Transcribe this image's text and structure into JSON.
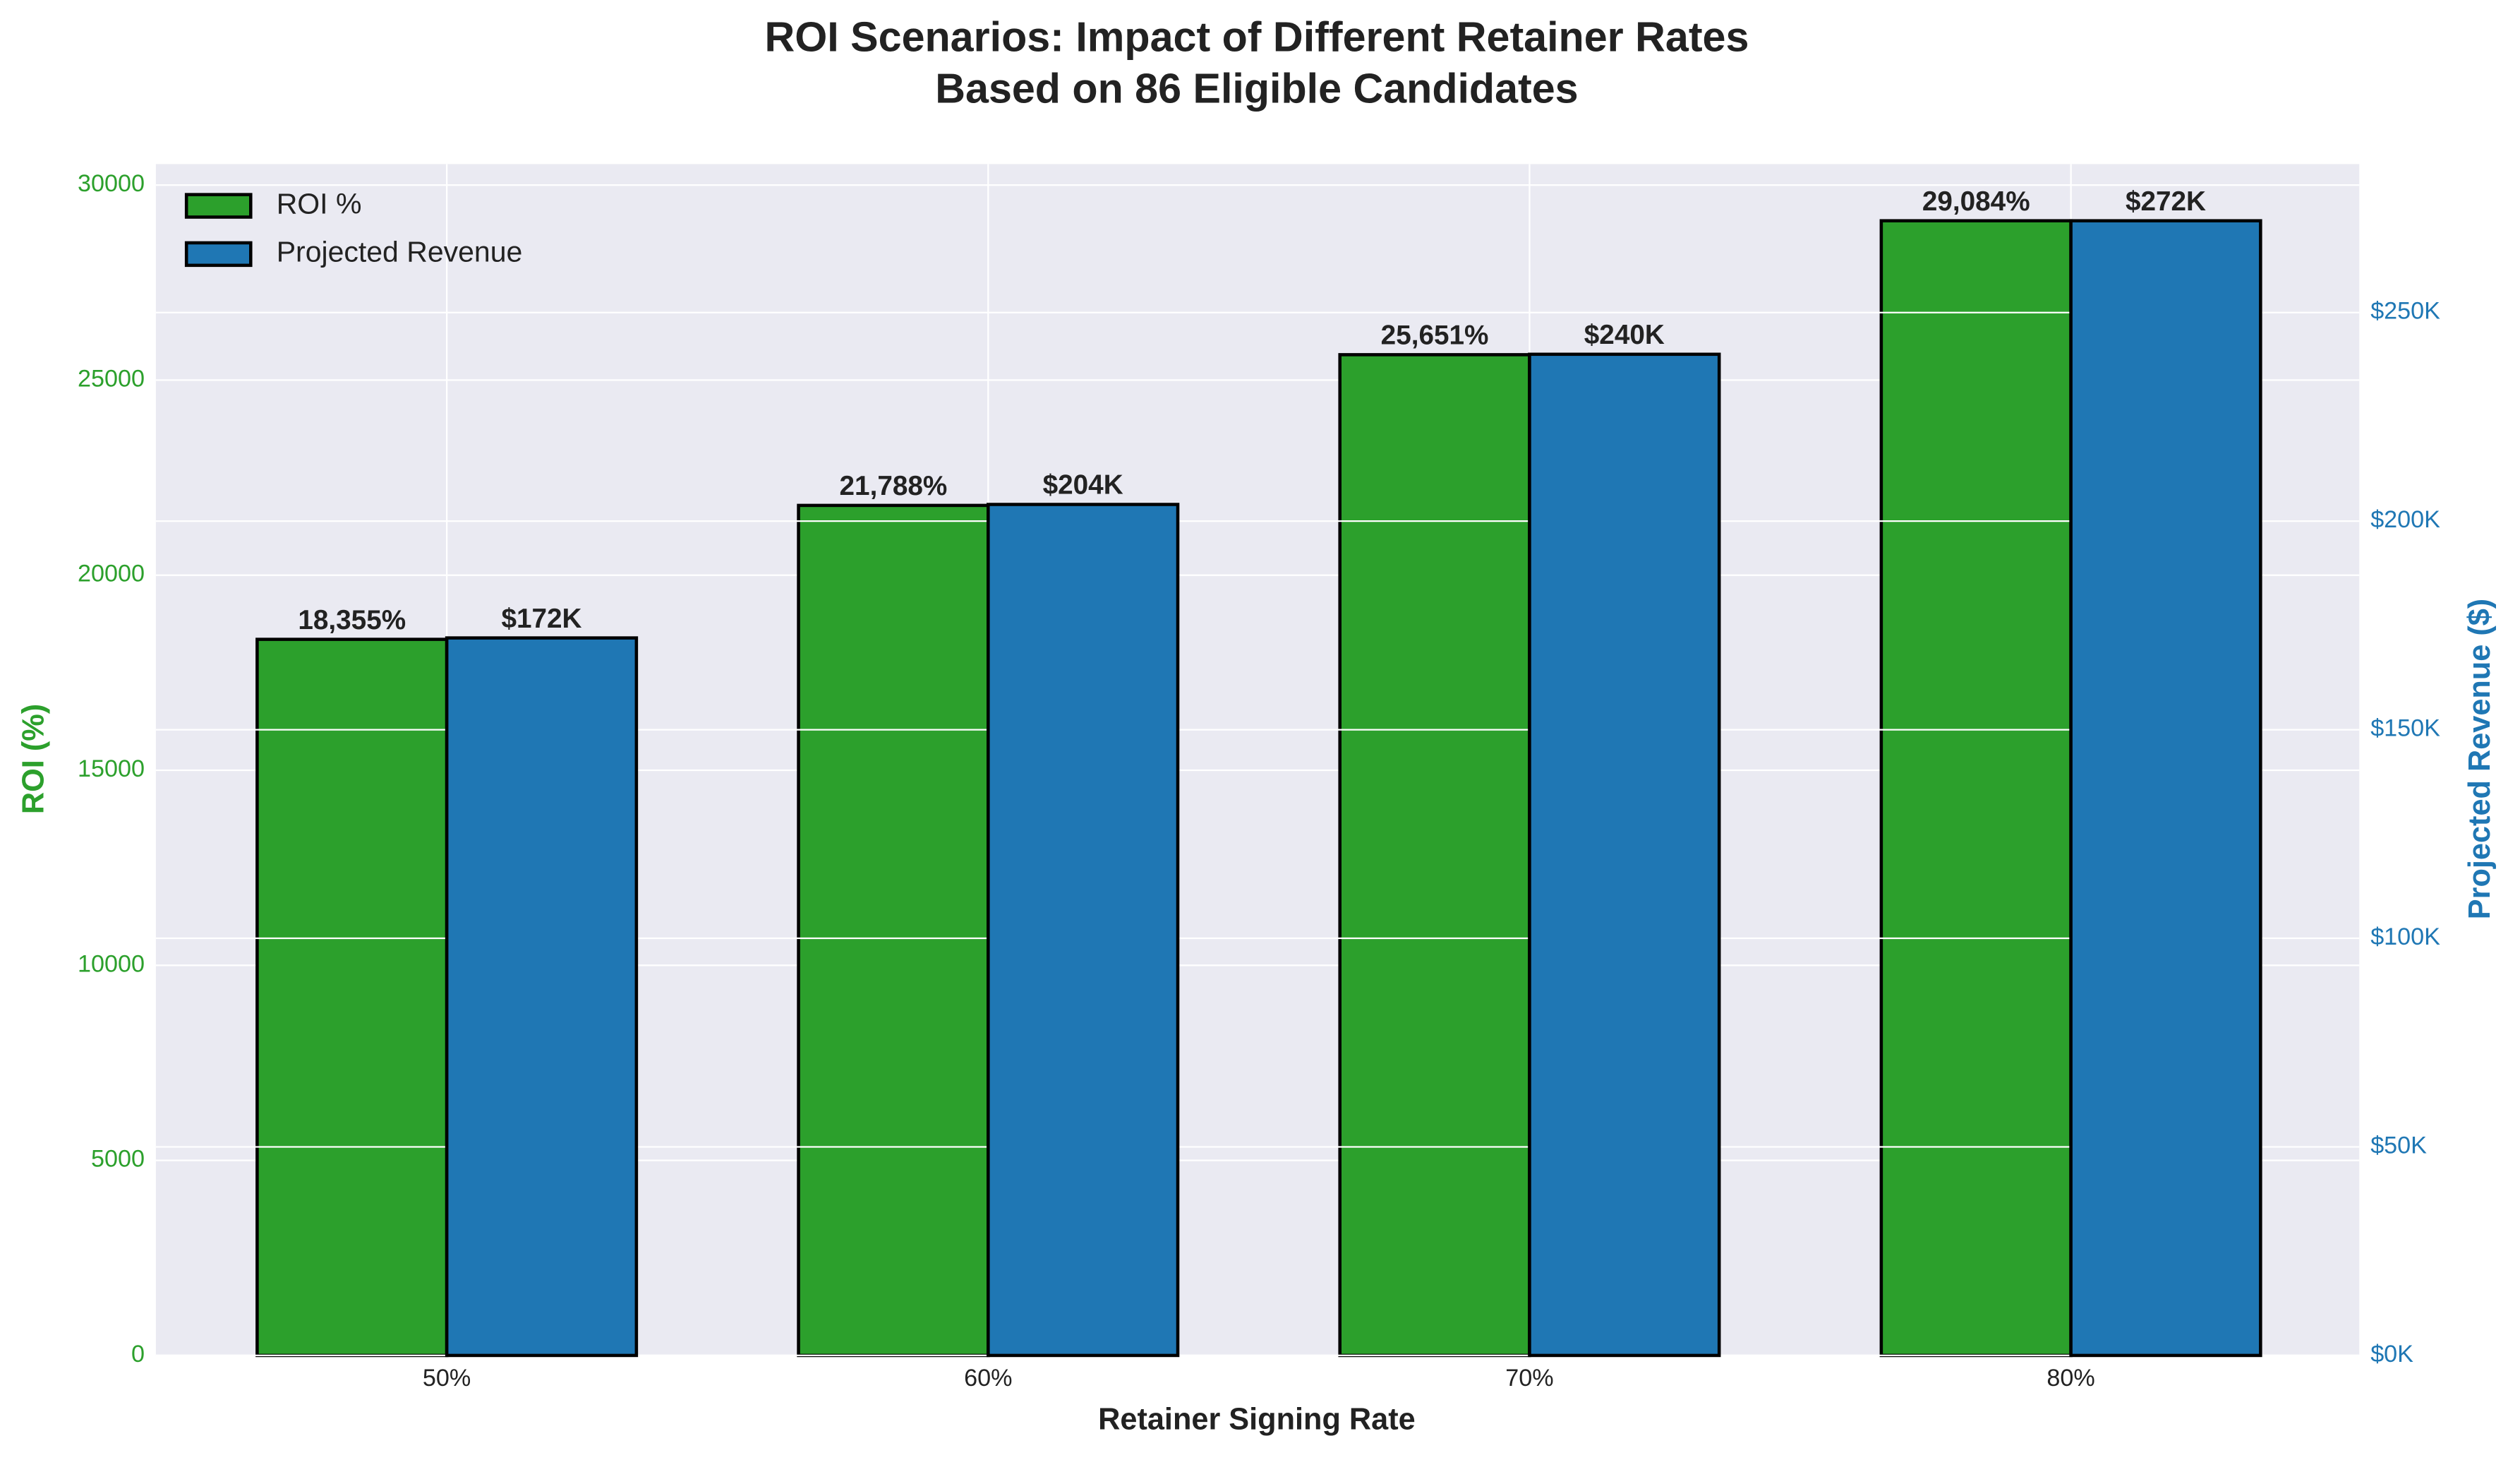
{
  "chart_data": {
    "type": "bar",
    "title": "ROI Scenarios: Impact of Different Retainer Rates",
    "subtitle": "Based on 86 Eligible Candidates",
    "x_label": "Retainer Signing Rate",
    "y_label": "ROI (%)",
    "y2_label": "Projected Revenue ($)",
    "categories": [
      "50%",
      "60%",
      "70%",
      "80%"
    ],
    "series": [
      {
        "name": "ROI %",
        "color": "#2ca02c",
        "values": [
          18355,
          21788,
          25651,
          29084
        ],
        "value_labels": [
          "18,355%",
          "21,788%",
          "25,651%",
          "29,084%"
        ]
      },
      {
        "name": "Projected Revenue",
        "color": "#1f77b4",
        "axis": "y2",
        "values": [
          172000,
          204000,
          240000,
          272000
        ],
        "value_labels": [
          "$172K",
          "$204K",
          "$240K",
          "$272K"
        ]
      }
    ],
    "ylim": [
      0,
      30538
    ],
    "yticks": [
      0,
      5000,
      10000,
      15000,
      20000,
      25000,
      30000
    ],
    "y2lim": [
      0,
      285600
    ],
    "y2ticks": [
      {
        "value": 0,
        "label": "$0K"
      },
      {
        "value": 50000,
        "label": "$50K"
      },
      {
        "value": 100000,
        "label": "$100K"
      },
      {
        "value": 150000,
        "label": "$150K"
      },
      {
        "value": 200000,
        "label": "$200K"
      },
      {
        "value": 250000,
        "label": "$250K"
      }
    ],
    "grid": true,
    "legend": "upper left"
  }
}
